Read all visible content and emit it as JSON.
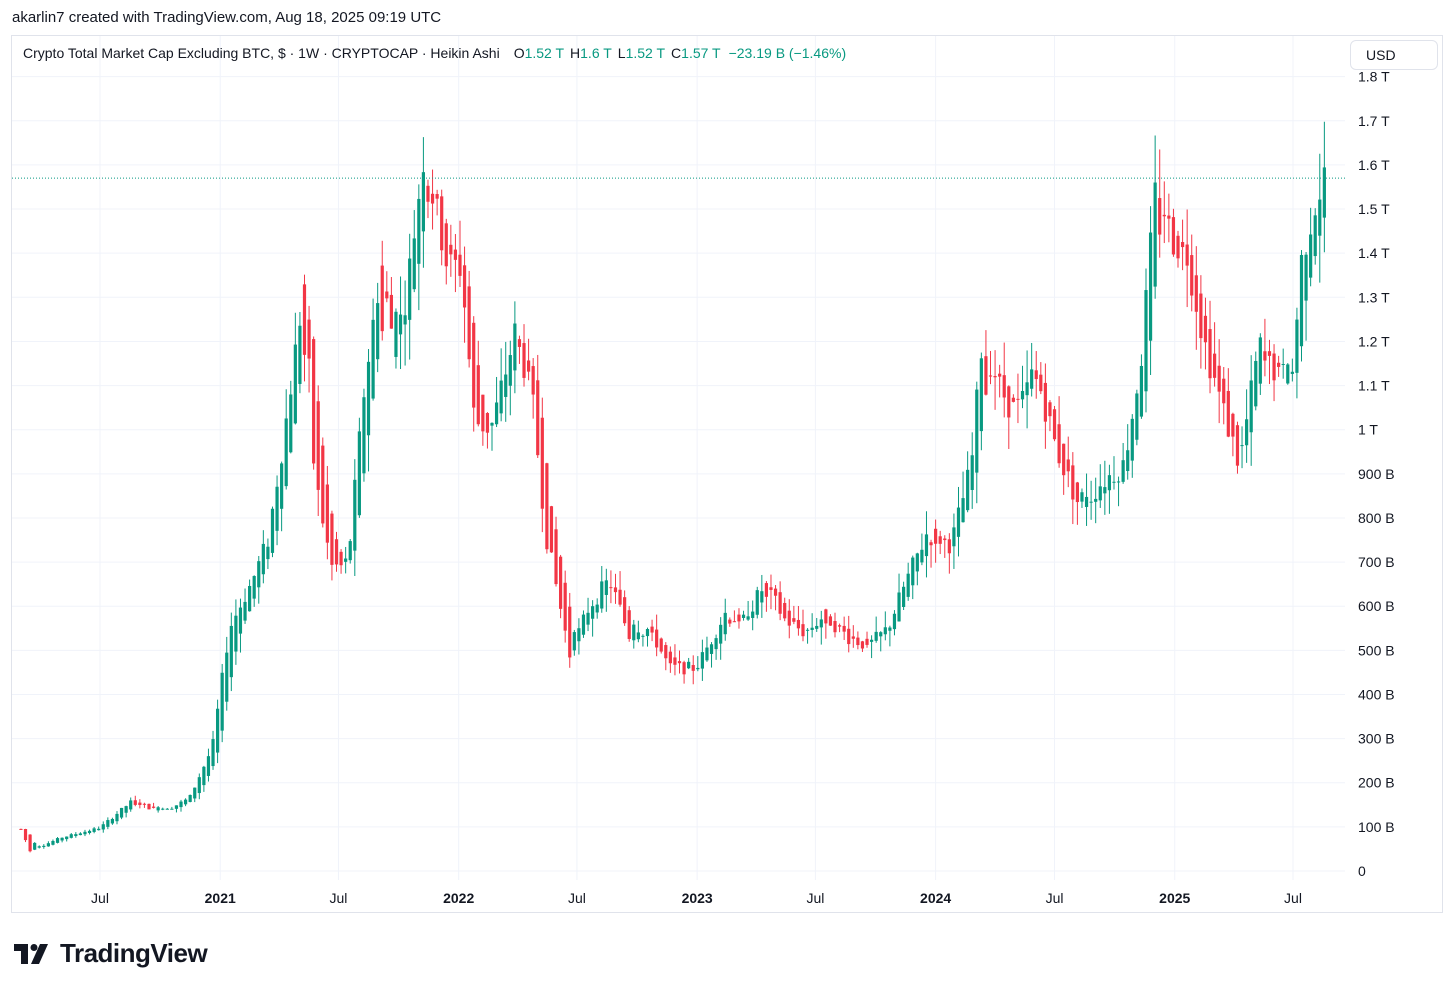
{
  "header": {
    "credit": "akarlin7 created with TradingView.com, Aug 18, 2025 09:19 UTC"
  },
  "legend": {
    "symbol": "Crypto Total Market Cap Excluding BTC, $ · 1W · CRYPTOCAP · Heikin Ashi",
    "o_label": "O",
    "o_value": "1.52 T",
    "h_label": "H",
    "h_value": "1.6 T",
    "l_label": "L",
    "l_value": "1.52 T",
    "c_label": "C",
    "c_value": "1.57 T",
    "change": "−23.19 B (−1.46%)"
  },
  "currency_button": "USD",
  "brand": {
    "name": "TradingView"
  },
  "colors": {
    "up": "#089981",
    "down": "#F23645",
    "grid": "#F0F3FA",
    "price_line": "#089981"
  },
  "chart_data": {
    "type": "candlestick",
    "style": "Heikin Ashi",
    "interval": "1W",
    "y_unit": "USD",
    "ylim": [
      0,
      1800000000000
    ],
    "y_ticks": [
      {
        "value": 0,
        "label": "0"
      },
      {
        "value": 100,
        "label": "100 B"
      },
      {
        "value": 200,
        "label": "200 B"
      },
      {
        "value": 300,
        "label": "300 B"
      },
      {
        "value": 400,
        "label": "400 B"
      },
      {
        "value": 500,
        "label": "500 B"
      },
      {
        "value": 600,
        "label": "600 B"
      },
      {
        "value": 700,
        "label": "700 B"
      },
      {
        "value": 800,
        "label": "800 B"
      },
      {
        "value": 900,
        "label": "900 B"
      },
      {
        "value": 1000,
        "label": "1 T"
      },
      {
        "value": 1100,
        "label": "1.1 T"
      },
      {
        "value": 1200,
        "label": "1.2 T"
      },
      {
        "value": 1300,
        "label": "1.3 T"
      },
      {
        "value": 1400,
        "label": "1.4 T"
      },
      {
        "value": 1500,
        "label": "1.5 T"
      },
      {
        "value": 1600,
        "label": "1.6 T"
      },
      {
        "value": 1700,
        "label": "1.7 T"
      },
      {
        "value": 1800,
        "label": "1.8 T"
      }
    ],
    "x_ticks": [
      {
        "date": "2020-07-01",
        "label": "Jul",
        "bold": false
      },
      {
        "date": "2021-01-01",
        "label": "2021",
        "bold": true
      },
      {
        "date": "2021-07-01",
        "label": "Jul",
        "bold": false
      },
      {
        "date": "2022-01-01",
        "label": "2022",
        "bold": true
      },
      {
        "date": "2022-07-01",
        "label": "Jul",
        "bold": false
      },
      {
        "date": "2023-01-01",
        "label": "2023",
        "bold": true
      },
      {
        "date": "2023-07-01",
        "label": "Jul",
        "bold": false
      },
      {
        "date": "2024-01-01",
        "label": "2024",
        "bold": true
      },
      {
        "date": "2024-07-01",
        "label": "Jul",
        "bold": false
      },
      {
        "date": "2025-01-01",
        "label": "2025",
        "bold": true
      },
      {
        "date": "2025-07-01",
        "label": "Jul",
        "bold": false
      }
    ],
    "x_range": [
      "2020-03-02",
      "2025-09-15"
    ],
    "last_close": 1570,
    "anchors": [
      [
        "2020-03-02",
        95
      ],
      [
        "2020-03-16",
        45
      ],
      [
        "2020-05-01",
        75
      ],
      [
        "2020-07-01",
        98
      ],
      [
        "2020-08-20",
        160
      ],
      [
        "2020-09-20",
        140
      ],
      [
        "2020-10-20",
        145
      ],
      [
        "2020-11-15",
        165
      ],
      [
        "2020-12-20",
        280
      ],
      [
        "2021-01-15",
        550
      ],
      [
        "2021-02-20",
        660
      ],
      [
        "2021-03-15",
        750
      ],
      [
        "2021-04-10",
        1000
      ],
      [
        "2021-05-10",
        1330
      ],
      [
        "2021-05-25",
        900
      ],
      [
        "2021-06-20",
        690
      ],
      [
        "2021-07-15",
        690
      ],
      [
        "2021-08-10",
        1100
      ],
      [
        "2021-09-05",
        1380
      ],
      [
        "2021-09-25",
        1180
      ],
      [
        "2021-10-15",
        1330
      ],
      [
        "2021-11-08",
        1620
      ],
      [
        "2021-11-28",
        1500
      ],
      [
        "2021-12-15",
        1370
      ],
      [
        "2022-01-05",
        1370
      ],
      [
        "2022-01-25",
        1020
      ],
      [
        "2022-02-20",
        1000
      ],
      [
        "2022-03-30",
        1230
      ],
      [
        "2022-04-25",
        1050
      ],
      [
        "2022-05-15",
        760
      ],
      [
        "2022-06-20",
        490
      ],
      [
        "2022-07-20",
        600
      ],
      [
        "2022-08-20",
        660
      ],
      [
        "2022-09-20",
        530
      ],
      [
        "2022-10-20",
        550
      ],
      [
        "2022-11-20",
        460
      ],
      [
        "2022-12-31",
        460
      ],
      [
        "2023-02-15",
        590
      ],
      [
        "2023-03-10",
        560
      ],
      [
        "2023-04-15",
        650
      ],
      [
        "2023-05-15",
        570
      ],
      [
        "2023-06-15",
        540
      ],
      [
        "2023-07-15",
        580
      ],
      [
        "2023-08-20",
        530
      ],
      [
        "2023-09-20",
        510
      ],
      [
        "2023-10-20",
        550
      ],
      [
        "2023-11-15",
        650
      ],
      [
        "2023-12-20",
        770
      ],
      [
        "2024-01-25",
        740
      ],
      [
        "2024-02-25",
        920
      ],
      [
        "2024-03-12",
        1200
      ],
      [
        "2024-04-20",
        1060
      ],
      [
        "2024-05-10",
        1050
      ],
      [
        "2024-06-01",
        1140
      ],
      [
        "2024-07-05",
        950
      ],
      [
        "2024-08-10",
        820
      ],
      [
        "2024-09-10",
        880
      ],
      [
        "2024-10-15",
        920
      ],
      [
        "2024-11-10",
        1150
      ],
      [
        "2024-12-05",
        1580
      ],
      [
        "2024-12-25",
        1440
      ],
      [
        "2025-01-20",
        1400
      ],
      [
        "2025-02-15",
        1200
      ],
      [
        "2025-03-15",
        1050
      ],
      [
        "2025-04-10",
        920
      ],
      [
        "2025-05-10",
        1190
      ],
      [
        "2025-06-10",
        1120
      ],
      [
        "2025-06-30",
        1130
      ],
      [
        "2025-07-15",
        1400
      ],
      [
        "2025-08-05",
        1520
      ],
      [
        "2025-08-18",
        1570
      ]
    ]
  }
}
